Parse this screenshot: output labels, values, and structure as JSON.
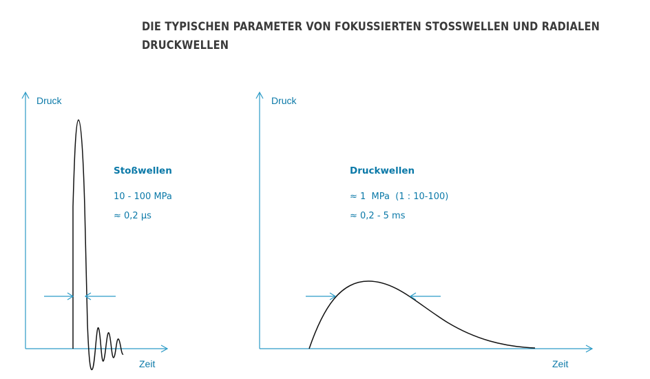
{
  "title": {
    "line1": "DIE TYPISCHEN PARAMETER VON FOKUSSIERTEN STOSSWELLEN UND RADIALEN",
    "line2": "DRUCKWELLEN"
  },
  "colors": {
    "accent": "#0b79a8",
    "axis": "#2a9ac6",
    "curve": "#111111",
    "title": "#3a3a3a"
  },
  "left_panel": {
    "y_label": "Druck",
    "x_label": "Zeit",
    "heading": "Stoßwellen",
    "value1": "10 - 100 MPa",
    "value2": "≈ 0,2 µs"
  },
  "right_panel": {
    "y_label": "Druck",
    "x_label": "Zeit",
    "heading": "Druckwellen",
    "value1": "≈ 1  MPa  (1 : 10-100)",
    "value2": "≈ 0,2 - 5 ms"
  }
}
